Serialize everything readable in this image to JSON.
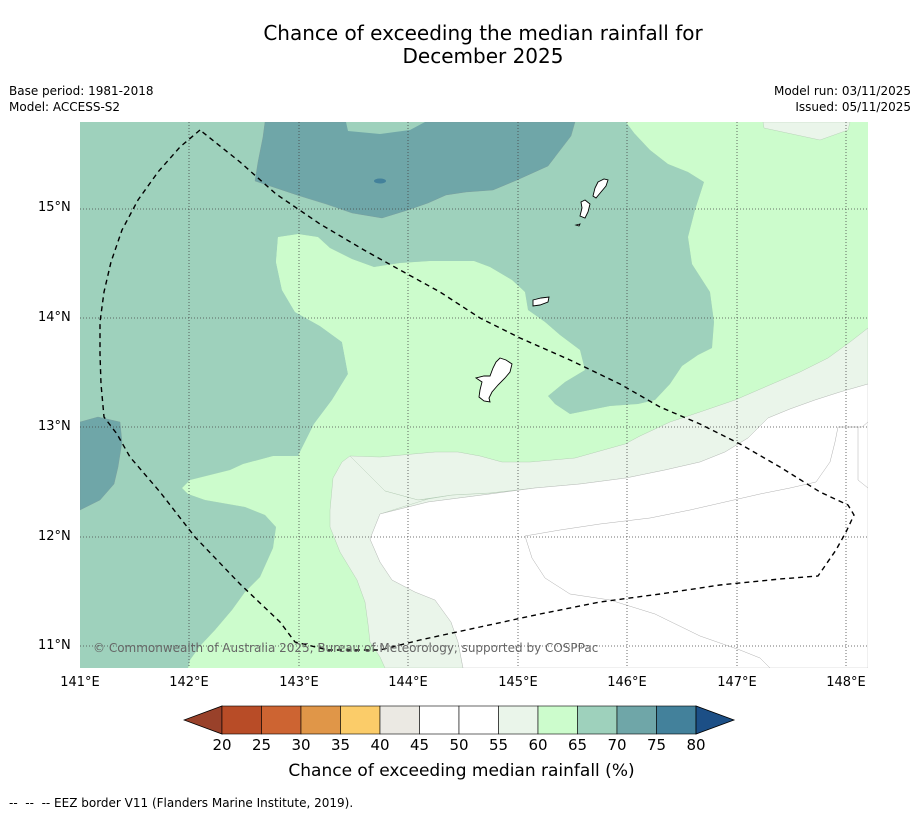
{
  "title": {
    "line1": "Chance of exceeding the median rainfall for",
    "line2": "December 2025"
  },
  "meta": {
    "base_period": "Base period: 1981-2018",
    "model": "Model: ACCESS-S2",
    "model_run": "Model run: 03/11/2025",
    "issued": "Issued: 05/11/2025"
  },
  "map": {
    "lat_labels": [
      "15°N",
      "14°N",
      "13°N",
      "12°N",
      "11°N"
    ],
    "lon_labels": [
      "141°E",
      "142°E",
      "143°E",
      "144°E",
      "145°E",
      "146°E",
      "147°E",
      "148°E"
    ],
    "copyright": "© Commonwealth of Australia 2025, Bureau of Meteorology, supported by COSPPac",
    "colors": {
      "c55_60": "#eaf5ea",
      "c60_65": "#ccfccc",
      "c65_70": "#9ed1bc",
      "c70_75": "#6fa6a8"
    }
  },
  "colorbar": {
    "ticks": [
      "20",
      "25",
      "30",
      "35",
      "40",
      "45",
      "50",
      "55",
      "60",
      "65",
      "70",
      "75",
      "80"
    ],
    "colors": [
      "#a64528",
      "#b84c27",
      "#cd6432",
      "#e09648",
      "#fbcc69",
      "#ebe9e3",
      "#ffffff",
      "#ffffff",
      "#eaf5ea",
      "#ccfccc",
      "#9ed1bc",
      "#6fa6a8",
      "#43819b"
    ],
    "under_color": "#99412a",
    "over_color": "#1c4f86",
    "label": "Chance of exceeding median rainfall (%)"
  },
  "footnote": "--  --  -- EEZ border V11 (Flanders Marine Institute, 2019)."
}
